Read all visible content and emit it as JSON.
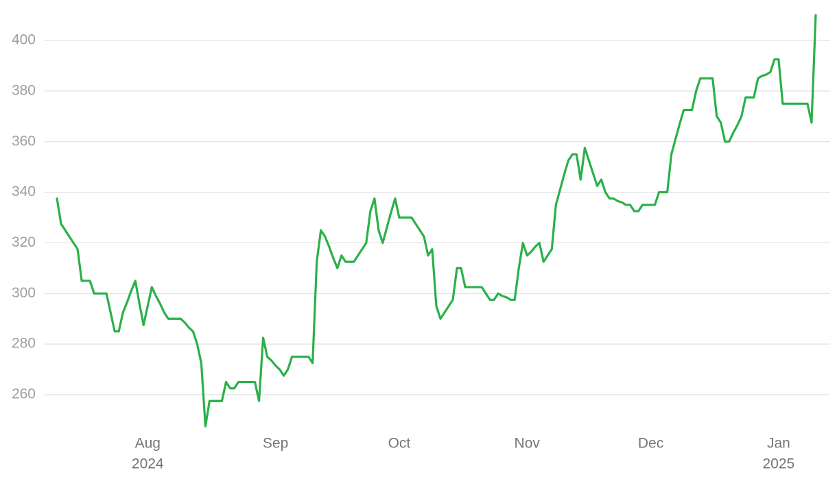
{
  "chart_data": {
    "type": "line",
    "color": "#2bb04a",
    "grid": true,
    "xlim": [
      -3,
      187.5
    ],
    "ylim": [
      245,
      413
    ],
    "yticks": [
      260,
      280,
      300,
      320,
      340,
      360,
      380,
      400
    ],
    "xticks": [
      {
        "value": 22,
        "label": "Aug"
      },
      {
        "value": 53,
        "label": "Sep"
      },
      {
        "value": 83,
        "label": "Oct"
      },
      {
        "value": 114,
        "label": "Nov"
      },
      {
        "value": 144,
        "label": "Dec"
      },
      {
        "value": 175,
        "label": "Jan"
      }
    ],
    "year_ticks": [
      {
        "value": 22,
        "label": "2024"
      },
      {
        "value": 175,
        "label": "2025"
      }
    ],
    "values": [
      337.5,
      327.5,
      325,
      322.5,
      320,
      317.5,
      305,
      305,
      305,
      300,
      300,
      300,
      300,
      292.5,
      285,
      285,
      292.5,
      296.5,
      301,
      305,
      296,
      287.5,
      295,
      302.5,
      299,
      296,
      292.5,
      290,
      290,
      290,
      290,
      288.5,
      286.5,
      285,
      280,
      272.5,
      247.5,
      257.5,
      257.5,
      257.5,
      257.5,
      265,
      262.5,
      262.5,
      265,
      265,
      265,
      265,
      265,
      257.5,
      282.5,
      275,
      273.5,
      271.5,
      270,
      267.5,
      270,
      275,
      275,
      275,
      275,
      275,
      272.5,
      312.5,
      325,
      322.5,
      318.5,
      314,
      310,
      315,
      312.5,
      312.5,
      312.5,
      315,
      317.5,
      320,
      332.5,
      337.5,
      325,
      320,
      326,
      332,
      337.5,
      330,
      330,
      330,
      330,
      327.5,
      325,
      322.5,
      315,
      317.5,
      295,
      290,
      292.5,
      295,
      297.5,
      310,
      310,
      302.5,
      302.5,
      302.5,
      302.5,
      302.5,
      300,
      297.5,
      297.5,
      300,
      299,
      298.5,
      297.5,
      297.5,
      310,
      320,
      315,
      316.5,
      318.5,
      320,
      312.5,
      315,
      317.5,
      335,
      341,
      347,
      352.5,
      355,
      355,
      345,
      357.5,
      352.5,
      347.5,
      342.5,
      345,
      340,
      337.5,
      337.5,
      336.5,
      336,
      335,
      335,
      332.5,
      332.5,
      335,
      335,
      335,
      335,
      340,
      340,
      340,
      355,
      361,
      367,
      372.5,
      372.5,
      372.5,
      380,
      385,
      385,
      385,
      385,
      370,
      367.5,
      360,
      360,
      363.5,
      366.5,
      370,
      377.5,
      377.5,
      377.5,
      385,
      386,
      386.5,
      387.5,
      392.5,
      392.5,
      375,
      375,
      375,
      375,
      375,
      375,
      375,
      367.5,
      410
    ]
  }
}
